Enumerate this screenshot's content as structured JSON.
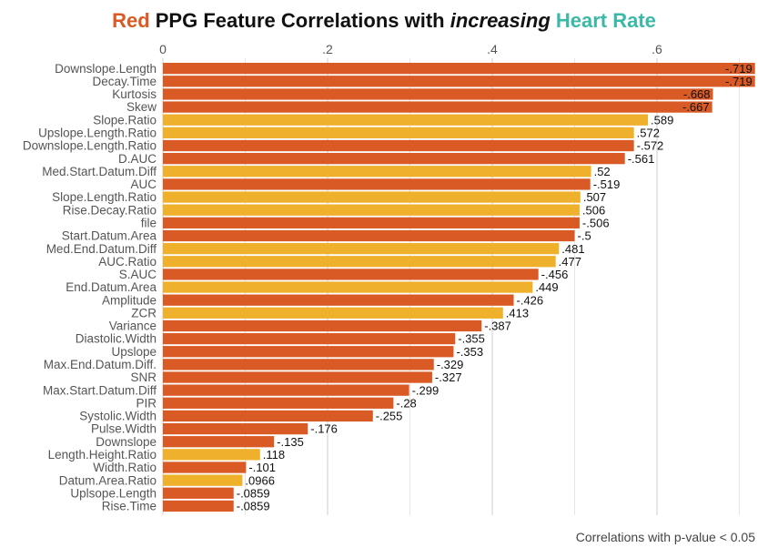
{
  "title": {
    "part1": "Red",
    "part2": " PPG Feature Correlations with ",
    "part3": "increasing",
    "part4": " Heart Rate"
  },
  "caption": "Correlations with p-value < 0.05",
  "colors": {
    "negative": "#d95a25",
    "positive": "#efb12c",
    "title_red": "#d95a25",
    "title_teal": "#3cb8a6"
  },
  "chart_data": {
    "type": "bar",
    "orientation": "horizontal",
    "x_range": [
      0,
      0.7
    ],
    "x_ticks": [
      0,
      0.2,
      0.4,
      0.6
    ],
    "x_tick_labels": [
      "0",
      ".2",
      ".4",
      ".6"
    ],
    "grid": true,
    "categories": [
      "Downslope.Length",
      "Decay.Time",
      "Kurtosis",
      "Skew",
      "Slope.Ratio",
      "Upslope.Length.Ratio",
      "Downslope.Length.Ratio",
      "D.AUC",
      "Med.Start.Datum.Diff",
      "AUC",
      "Slope.Length.Ratio",
      "Rise.Decay.Ratio",
      "file",
      "Start.Datum.Area",
      "Med.End.Datum.Diff",
      "AUC.Ratio",
      "S.AUC",
      "End.Datum.Area",
      "Amplitude",
      "ZCR",
      "Variance",
      "Diastolic.Width",
      "Upslope",
      "Max.End.Datum.Diff.",
      "SNR",
      "Max.Start.Datum.Diff",
      "PIR",
      "Systolic.Width",
      "Pulse.Width",
      "Downslope",
      "Length.Height.Ratio",
      "Width.Ratio",
      "Datum.Area.Ratio",
      "Uplsope.Length",
      "Rise.Time"
    ],
    "values": [
      -0.719,
      -0.719,
      -0.668,
      -0.667,
      0.589,
      0.572,
      -0.572,
      -0.561,
      0.52,
      -0.519,
      0.507,
      0.506,
      -0.506,
      -0.5,
      0.481,
      0.477,
      -0.456,
      0.449,
      -0.426,
      0.413,
      -0.387,
      -0.355,
      -0.353,
      -0.329,
      -0.327,
      -0.299,
      -0.28,
      -0.255,
      -0.176,
      -0.135,
      0.118,
      -0.101,
      0.0966,
      -0.0859,
      -0.0859
    ],
    "value_labels": [
      "-.719",
      "-.719",
      "-.668",
      "-.667",
      ".589",
      ".572",
      "-.572",
      "-.561",
      ".52",
      "-.519",
      ".507",
      ".506",
      "-.506",
      "-.5",
      ".481",
      ".477",
      "-.456",
      ".449",
      "-.426",
      ".413",
      "-.387",
      "-.355",
      "-.353",
      "-.329",
      "-.327",
      "-.299",
      "-.28",
      "-.255",
      "-.176",
      "-.135",
      ".118",
      "-.101",
      ".0966",
      "-.0859",
      "-.0859"
    ]
  }
}
